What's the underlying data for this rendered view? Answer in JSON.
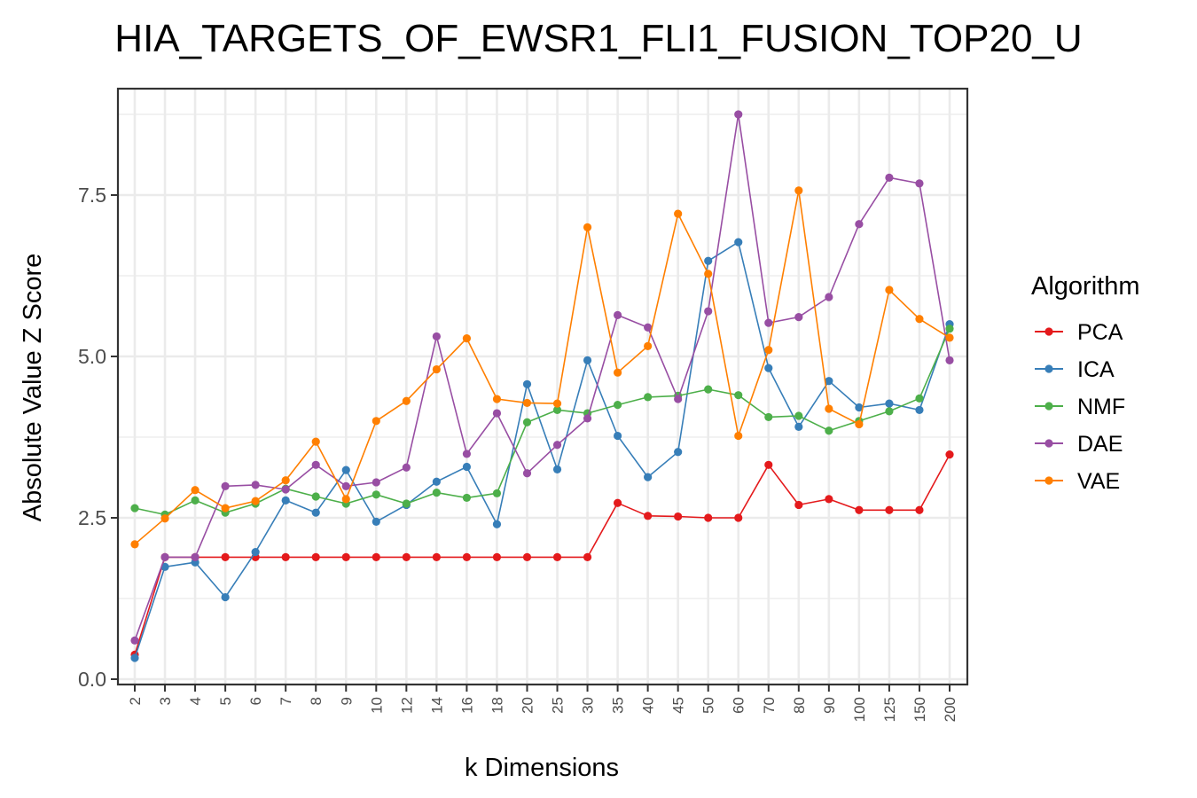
{
  "chart_data": {
    "type": "line",
    "title": "HIA_TARGETS_OF_EWSR1_FLI1_FUSION_TOP20_U",
    "xlabel": "k Dimensions",
    "ylabel": "Absolute Value Z Score",
    "ylim": [
      0,
      9
    ],
    "yticks": [
      "0.0",
      "2.5",
      "5.0",
      "7.5"
    ],
    "grid": true,
    "legend_position": "right",
    "legend_title": "Algorithm",
    "categories": [
      "2",
      "3",
      "4",
      "5",
      "6",
      "7",
      "8",
      "9",
      "10",
      "12",
      "14",
      "16",
      "18",
      "20",
      "25",
      "30",
      "35",
      "40",
      "45",
      "50",
      "60",
      "70",
      "80",
      "90",
      "100",
      "125",
      "150",
      "200"
    ],
    "series": [
      {
        "name": "PCA",
        "color": "#e41a1c",
        "values": [
          0.38,
          1.89,
          1.89,
          1.89,
          1.89,
          1.89,
          1.89,
          1.89,
          1.89,
          1.89,
          1.89,
          1.89,
          1.89,
          1.89,
          1.89,
          1.89,
          2.73,
          2.53,
          2.52,
          2.5,
          2.5,
          3.32,
          2.7,
          2.79,
          2.62,
          2.62,
          2.62,
          3.48
        ]
      },
      {
        "name": "ICA",
        "color": "#377eb8",
        "values": [
          0.33,
          1.74,
          1.81,
          1.27,
          1.97,
          2.77,
          2.58,
          3.24,
          2.44,
          2.7,
          3.06,
          3.29,
          2.4,
          4.57,
          3.25,
          4.94,
          3.77,
          3.13,
          3.52,
          6.48,
          6.77,
          4.82,
          3.91,
          4.62,
          4.21,
          4.27,
          4.17,
          5.5
        ]
      },
      {
        "name": "NMF",
        "color": "#4daf4a",
        "values": [
          2.65,
          2.55,
          2.77,
          2.58,
          2.72,
          2.95,
          2.83,
          2.72,
          2.86,
          2.72,
          2.89,
          2.81,
          2.88,
          3.98,
          4.17,
          4.12,
          4.25,
          4.37,
          4.39,
          4.49,
          4.4,
          4.06,
          4.08,
          3.85,
          4.0,
          4.15,
          4.35,
          5.43
        ]
      },
      {
        "name": "DAE",
        "color": "#984ea3",
        "values": [
          0.6,
          1.89,
          1.89,
          2.99,
          3.01,
          2.94,
          3.32,
          2.99,
          3.05,
          3.28,
          5.31,
          3.49,
          4.12,
          3.19,
          3.63,
          4.04,
          5.64,
          5.45,
          4.34,
          5.7,
          8.75,
          5.52,
          5.61,
          5.92,
          7.05,
          7.77,
          7.68,
          4.94
        ]
      },
      {
        "name": "VAE",
        "color": "#ff7f00",
        "values": [
          2.09,
          2.49,
          2.93,
          2.65,
          2.76,
          3.08,
          3.68,
          2.79,
          4.0,
          4.31,
          4.8,
          5.28,
          4.34,
          4.28,
          4.27,
          7.0,
          4.75,
          5.16,
          7.21,
          6.28,
          3.77,
          5.1,
          7.57,
          4.19,
          3.95,
          6.03,
          5.58,
          5.29
        ]
      }
    ]
  }
}
